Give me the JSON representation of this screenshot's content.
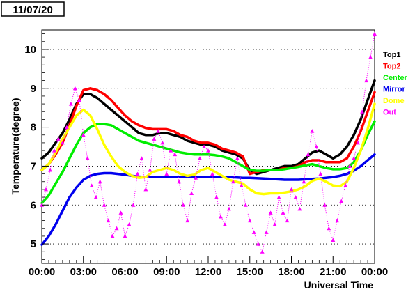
{
  "chart_data": {
    "type": "line",
    "date_label": "11/07/20",
    "xlabel": "Universal Time",
    "ylabel": "Temperature(degree)",
    "x_unit": "hours UT",
    "xlim": [
      0,
      24
    ],
    "ylim": [
      4.5,
      10.5
    ],
    "x_ticks": [
      "00:00",
      "03:00",
      "06:00",
      "09:00",
      "12:00",
      "15:00",
      "18:00",
      "21:00",
      "00:00"
    ],
    "x_tick_values": [
      0,
      3,
      6,
      9,
      12,
      15,
      18,
      21,
      24
    ],
    "y_ticks": [
      "5",
      "6",
      "7",
      "8",
      "9",
      "10"
    ],
    "y_tick_values": [
      5,
      6,
      7,
      8,
      9,
      10
    ],
    "grid": "horizontal dotted at y ticks",
    "legend_placement": "right",
    "series": [
      {
        "name": "Top1",
        "color": "#000000",
        "style": "line",
        "x": [
          0,
          0.5,
          1,
          1.5,
          2,
          2.5,
          3,
          3.5,
          4,
          4.5,
          5,
          5.5,
          6,
          6.5,
          7,
          7.5,
          8,
          8.5,
          9,
          9.5,
          10,
          10.5,
          11,
          11.5,
          12,
          12.5,
          13,
          13.5,
          14,
          14.5,
          15,
          15.5,
          16,
          16.5,
          17,
          17.5,
          18,
          18.5,
          19,
          19.5,
          20,
          20.5,
          21,
          21.5,
          22,
          22.5,
          23,
          23.5,
          24
        ],
        "y": [
          7.2,
          7.35,
          7.6,
          7.85,
          8.2,
          8.6,
          8.85,
          8.85,
          8.75,
          8.6,
          8.45,
          8.3,
          8.15,
          8.0,
          7.85,
          7.8,
          7.8,
          7.85,
          7.85,
          7.8,
          7.75,
          7.65,
          7.6,
          7.55,
          7.55,
          7.5,
          7.4,
          7.35,
          7.3,
          7.2,
          6.9,
          6.8,
          6.85,
          6.9,
          6.95,
          7.0,
          7.0,
          7.05,
          7.2,
          7.35,
          7.4,
          7.3,
          7.2,
          7.3,
          7.5,
          7.8,
          8.2,
          8.7,
          9.2
        ]
      },
      {
        "name": "Top2",
        "color": "#ff0000",
        "style": "line",
        "x": [
          0,
          0.5,
          1,
          1.5,
          2,
          2.5,
          3,
          3.5,
          4,
          4.5,
          5,
          5.5,
          6,
          6.5,
          7,
          7.5,
          8,
          8.5,
          9,
          9.5,
          10,
          10.5,
          11,
          11.5,
          12,
          12.5,
          13,
          13.5,
          14,
          14.5,
          15,
          15.5,
          16,
          16.5,
          17,
          17.5,
          18,
          18.5,
          19,
          19.5,
          20,
          20.5,
          21,
          21.5,
          22,
          22.5,
          23,
          23.5,
          24
        ],
        "y": [
          6.9,
          7.05,
          7.3,
          7.6,
          8.05,
          8.55,
          8.95,
          9.0,
          8.95,
          8.85,
          8.7,
          8.5,
          8.3,
          8.15,
          8.05,
          7.98,
          7.95,
          7.95,
          7.95,
          7.9,
          7.8,
          7.75,
          7.65,
          7.6,
          7.6,
          7.55,
          7.45,
          7.4,
          7.35,
          7.25,
          6.8,
          6.85,
          6.9,
          6.9,
          6.9,
          6.95,
          6.95,
          7.0,
          7.1,
          7.15,
          7.15,
          7.1,
          7.1,
          7.1,
          7.2,
          7.5,
          7.9,
          8.4,
          8.9
        ]
      },
      {
        "name": "Center",
        "color": "#00ee00",
        "style": "line",
        "x": [
          0,
          0.5,
          1,
          1.5,
          2,
          2.5,
          3,
          3.5,
          4,
          4.5,
          5,
          5.5,
          6,
          6.5,
          7,
          7.5,
          8,
          8.5,
          9,
          9.5,
          10,
          10.5,
          11,
          11.5,
          12,
          12.5,
          13,
          13.5,
          14,
          14.5,
          15,
          15.5,
          16,
          16.5,
          17,
          17.5,
          18,
          18.5,
          19,
          19.5,
          20,
          20.5,
          21,
          21.5,
          22,
          22.5,
          23,
          23.5,
          24
        ],
        "y": [
          6.05,
          6.25,
          6.55,
          6.85,
          7.2,
          7.55,
          7.85,
          8.0,
          8.08,
          8.08,
          8.05,
          7.95,
          7.85,
          7.75,
          7.65,
          7.6,
          7.55,
          7.5,
          7.45,
          7.4,
          7.35,
          7.32,
          7.3,
          7.3,
          7.3,
          7.28,
          7.25,
          7.2,
          7.1,
          7.0,
          6.9,
          6.88,
          6.88,
          6.9,
          6.9,
          6.92,
          6.95,
          6.98,
          7.02,
          7.05,
          7.0,
          6.95,
          6.92,
          6.92,
          6.95,
          7.1,
          7.4,
          7.8,
          8.15
        ]
      },
      {
        "name": "Mirror",
        "color": "#0000ee",
        "style": "line",
        "x": [
          0,
          0.5,
          1,
          1.5,
          2,
          2.5,
          3,
          3.5,
          4,
          4.5,
          5,
          5.5,
          6,
          6.5,
          7,
          7.5,
          8,
          8.5,
          9,
          9.5,
          10,
          10.5,
          11,
          11.5,
          12,
          12.5,
          13,
          13.5,
          14,
          14.5,
          15,
          15.5,
          16,
          16.5,
          17,
          17.5,
          18,
          18.5,
          19,
          19.5,
          20,
          20.5,
          21,
          21.5,
          22,
          22.5,
          23,
          23.5,
          24
        ],
        "y": [
          4.98,
          5.2,
          5.5,
          5.85,
          6.2,
          6.45,
          6.65,
          6.75,
          6.8,
          6.82,
          6.82,
          6.8,
          6.78,
          6.75,
          6.73,
          6.72,
          6.72,
          6.72,
          6.72,
          6.72,
          6.72,
          6.72,
          6.72,
          6.72,
          6.72,
          6.72,
          6.72,
          6.72,
          6.71,
          6.7,
          6.7,
          6.69,
          6.68,
          6.67,
          6.66,
          6.65,
          6.65,
          6.65,
          6.66,
          6.67,
          6.68,
          6.7,
          6.72,
          6.75,
          6.8,
          6.88,
          7.0,
          7.15,
          7.3
        ]
      },
      {
        "name": "Dome",
        "color": "#ffff00",
        "style": "line",
        "x": [
          0,
          0.5,
          1,
          1.5,
          2,
          2.5,
          3,
          3.5,
          4,
          4.5,
          5,
          5.5,
          6,
          6.5,
          7,
          7.5,
          8,
          8.5,
          9,
          9.5,
          10,
          10.5,
          11,
          11.5,
          12,
          12.5,
          13,
          13.5,
          14,
          14.5,
          15,
          15.5,
          16,
          16.5,
          17,
          17.5,
          18,
          18.5,
          19,
          19.5,
          20,
          20.5,
          21,
          21.5,
          22,
          22.5,
          23,
          23.5,
          24
        ],
        "y": [
          6.9,
          7.05,
          7.35,
          7.7,
          8.0,
          8.3,
          8.45,
          8.3,
          7.95,
          7.55,
          7.25,
          7.0,
          6.85,
          6.75,
          6.7,
          6.72,
          6.85,
          6.9,
          6.95,
          6.9,
          6.8,
          6.75,
          6.78,
          6.9,
          6.95,
          6.85,
          6.75,
          6.65,
          6.6,
          6.55,
          6.4,
          6.3,
          6.28,
          6.3,
          6.3,
          6.32,
          6.35,
          6.4,
          6.48,
          6.62,
          6.68,
          6.6,
          6.5,
          6.48,
          6.6,
          6.95,
          7.4,
          7.95,
          8.6
        ]
      },
      {
        "name": "Out",
        "color": "#ff00ff",
        "style": "markers",
        "x": [
          0,
          0.3,
          0.6,
          0.9,
          1.2,
          1.5,
          1.8,
          2.1,
          2.4,
          2.7,
          3.0,
          3.3,
          3.6,
          3.9,
          4.2,
          4.5,
          4.8,
          5.1,
          5.4,
          5.7,
          6.0,
          6.3,
          6.6,
          6.9,
          7.2,
          7.5,
          7.8,
          8.1,
          8.4,
          8.7,
          9.0,
          9.3,
          9.6,
          9.9,
          10.2,
          10.5,
          10.8,
          11.1,
          11.4,
          11.7,
          12.0,
          12.3,
          12.6,
          12.9,
          13.2,
          13.5,
          13.8,
          14.1,
          14.4,
          14.7,
          15.0,
          15.3,
          15.6,
          15.9,
          16.2,
          16.5,
          16.8,
          17.1,
          17.4,
          17.7,
          18.0,
          18.3,
          18.6,
          18.9,
          19.2,
          19.5,
          19.8,
          20.1,
          20.4,
          20.7,
          21.0,
          21.3,
          21.6,
          21.9,
          22.2,
          22.5,
          22.8,
          23.1,
          23.4,
          23.7,
          24.0
        ],
        "y": [
          6.0,
          6.4,
          6.9,
          7.4,
          7.7,
          7.6,
          8.0,
          8.6,
          9.0,
          8.7,
          7.8,
          7.2,
          6.5,
          6.2,
          6.6,
          6.0,
          5.6,
          5.2,
          5.4,
          5.8,
          5.2,
          5.5,
          6.0,
          6.8,
          7.2,
          6.4,
          6.9,
          7.7,
          7.9,
          7.6,
          6.8,
          7.4,
          7.3,
          6.6,
          6.0,
          5.6,
          6.3,
          6.7,
          7.2,
          7.5,
          7.4,
          6.8,
          6.2,
          5.7,
          5.5,
          5.9,
          6.6,
          7.2,
          6.5,
          6.0,
          5.6,
          5.3,
          5.0,
          4.8,
          5.3,
          5.8,
          5.5,
          6.2,
          5.8,
          5.6,
          6.4,
          6.2,
          5.9,
          6.6,
          7.3,
          7.9,
          7.5,
          6.8,
          6.0,
          5.4,
          5.1,
          5.6,
          6.1,
          6.5,
          7.0,
          7.2,
          7.6,
          8.4,
          9.2,
          9.8,
          10.4
        ]
      }
    ]
  }
}
